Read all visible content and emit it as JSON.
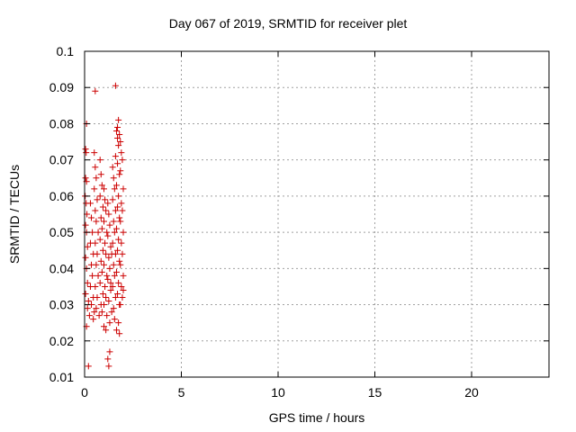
{
  "chart_data": {
    "type": "scatter",
    "title": "Day 067 of 2019, SRMTID for receiver plet",
    "xlabel": "GPS time / hours",
    "ylabel": "SRMTID / TECUs",
    "xlim": [
      0,
      24
    ],
    "ylim": [
      0.01,
      0.1
    ],
    "x_ticks": [
      0,
      5,
      10,
      15,
      20
    ],
    "x_tick_labels": [
      "0",
      "5",
      "10",
      "15",
      "20"
    ],
    "y_ticks": [
      0.01,
      0.02,
      0.03,
      0.04,
      0.05,
      0.06,
      0.07,
      0.08,
      0.09,
      0.1
    ],
    "y_tick_labels": [
      "0.01",
      "0.02",
      "0.03",
      "0.04",
      "0.05",
      "0.06",
      "0.07",
      "0.08",
      "0.09",
      "0.1"
    ],
    "grid": true,
    "marker": "+",
    "color": "#cc0000",
    "series": [
      {
        "points": [
          [
            0.05,
            0.073
          ],
          [
            0.08,
            0.072
          ],
          [
            0.1,
            0.08
          ],
          [
            0.05,
            0.065
          ],
          [
            0.1,
            0.064
          ],
          [
            0.03,
            0.06
          ],
          [
            0.08,
            0.058
          ],
          [
            0.12,
            0.055
          ],
          [
            0.05,
            0.052
          ],
          [
            0.1,
            0.05
          ],
          [
            0.15,
            0.046
          ],
          [
            0.05,
            0.043
          ],
          [
            0.1,
            0.04
          ],
          [
            0.15,
            0.036
          ],
          [
            0.05,
            0.033
          ],
          [
            0.2,
            0.031
          ],
          [
            0.15,
            0.029
          ],
          [
            0.25,
            0.027
          ],
          [
            0.1,
            0.024
          ],
          [
            0.2,
            0.013
          ],
          [
            0.3,
            0.058
          ],
          [
            0.35,
            0.054
          ],
          [
            0.4,
            0.05
          ],
          [
            0.3,
            0.047
          ],
          [
            0.45,
            0.044
          ],
          [
            0.35,
            0.041
          ],
          [
            0.4,
            0.038
          ],
          [
            0.3,
            0.035
          ],
          [
            0.45,
            0.032
          ],
          [
            0.35,
            0.03
          ],
          [
            0.5,
            0.028
          ],
          [
            0.45,
            0.026
          ],
          [
            0.5,
            0.072
          ],
          [
            0.55,
            0.068
          ],
          [
            0.6,
            0.065
          ],
          [
            0.5,
            0.062
          ],
          [
            0.65,
            0.059
          ],
          [
            0.55,
            0.056
          ],
          [
            0.6,
            0.053
          ],
          [
            0.7,
            0.05
          ],
          [
            0.55,
            0.047
          ],
          [
            0.65,
            0.044
          ],
          [
            0.6,
            0.041
          ],
          [
            0.7,
            0.038
          ],
          [
            0.55,
            0.035
          ],
          [
            0.65,
            0.032
          ],
          [
            0.6,
            0.029
          ],
          [
            0.75,
            0.027
          ],
          [
            0.55,
            0.089
          ],
          [
            0.8,
            0.07
          ],
          [
            0.85,
            0.066
          ],
          [
            0.9,
            0.063
          ],
          [
            0.8,
            0.06
          ],
          [
            0.95,
            0.057
          ],
          [
            0.85,
            0.054
          ],
          [
            0.9,
            0.051
          ],
          [
            0.8,
            0.048
          ],
          [
            0.95,
            0.045
          ],
          [
            0.85,
            0.042
          ],
          [
            0.9,
            0.039
          ],
          [
            0.8,
            0.036
          ],
          [
            0.95,
            0.033
          ],
          [
            0.85,
            0.03
          ],
          [
            0.9,
            0.028
          ],
          [
            1.0,
            0.024
          ],
          [
            1.0,
            0.062
          ],
          [
            1.05,
            0.059
          ],
          [
            1.1,
            0.056
          ],
          [
            1.0,
            0.053
          ],
          [
            1.15,
            0.05
          ],
          [
            1.05,
            0.047
          ],
          [
            1.1,
            0.044
          ],
          [
            1.0,
            0.041
          ],
          [
            1.15,
            0.038
          ],
          [
            1.05,
            0.035
          ],
          [
            1.1,
            0.032
          ],
          [
            1.0,
            0.03
          ],
          [
            1.15,
            0.027
          ],
          [
            1.1,
            0.023
          ],
          [
            1.2,
            0.015
          ],
          [
            1.25,
            0.013
          ],
          [
            1.3,
            0.017
          ],
          [
            1.2,
            0.058
          ],
          [
            1.25,
            0.055
          ],
          [
            1.3,
            0.052
          ],
          [
            1.2,
            0.049
          ],
          [
            1.35,
            0.046
          ],
          [
            1.25,
            0.043
          ],
          [
            1.3,
            0.04
          ],
          [
            1.2,
            0.037
          ],
          [
            1.35,
            0.034
          ],
          [
            1.25,
            0.031
          ],
          [
            1.4,
            0.028
          ],
          [
            1.3,
            0.025
          ],
          [
            1.35,
            0.036
          ],
          [
            1.4,
            0.044
          ],
          [
            1.45,
            0.068
          ],
          [
            1.5,
            0.065
          ],
          [
            1.55,
            0.062
          ],
          [
            1.45,
            0.059
          ],
          [
            1.6,
            0.056
          ],
          [
            1.5,
            0.053
          ],
          [
            1.55,
            0.05
          ],
          [
            1.45,
            0.047
          ],
          [
            1.6,
            0.044
          ],
          [
            1.5,
            0.041
          ],
          [
            1.55,
            0.038
          ],
          [
            1.45,
            0.035
          ],
          [
            1.6,
            0.032
          ],
          [
            1.5,
            0.029
          ],
          [
            1.55,
            0.026
          ],
          [
            1.65,
            0.023
          ],
          [
            1.6,
            0.0905
          ],
          [
            1.65,
            0.078
          ],
          [
            1.7,
            0.076
          ],
          [
            1.75,
            0.074
          ],
          [
            1.6,
            0.071
          ],
          [
            1.7,
            0.069
          ],
          [
            1.8,
            0.066
          ],
          [
            1.65,
            0.063
          ],
          [
            1.75,
            0.06
          ],
          [
            1.7,
            0.057
          ],
          [
            1.8,
            0.054
          ],
          [
            1.65,
            0.051
          ],
          [
            1.75,
            0.048
          ],
          [
            1.7,
            0.045
          ],
          [
            1.8,
            0.042
          ],
          [
            1.65,
            0.039
          ],
          [
            1.75,
            0.036
          ],
          [
            1.7,
            0.033
          ],
          [
            1.8,
            0.03
          ],
          [
            1.75,
            0.025
          ],
          [
            1.8,
            0.022
          ],
          [
            1.75,
            0.081
          ],
          [
            1.7,
            0.079
          ],
          [
            1.8,
            0.077
          ],
          [
            1.85,
            0.075
          ],
          [
            1.9,
            0.072
          ],
          [
            1.95,
            0.07
          ],
          [
            1.85,
            0.067
          ],
          [
            2.0,
            0.062
          ],
          [
            1.9,
            0.058
          ],
          [
            1.95,
            0.056
          ],
          [
            1.85,
            0.053
          ],
          [
            2.0,
            0.05
          ],
          [
            1.9,
            0.047
          ],
          [
            1.95,
            0.044
          ],
          [
            1.85,
            0.041
          ],
          [
            2.0,
            0.038
          ],
          [
            1.9,
            0.035
          ],
          [
            1.95,
            0.032
          ],
          [
            1.85,
            0.03
          ],
          [
            2.0,
            0.034
          ]
        ]
      }
    ]
  }
}
